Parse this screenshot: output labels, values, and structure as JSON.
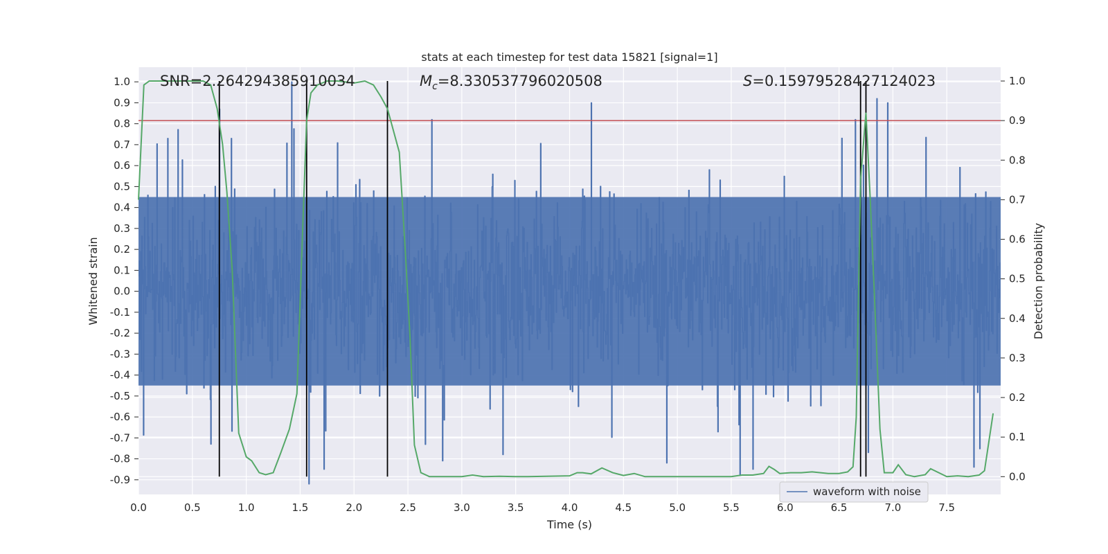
{
  "colors": {
    "background": "#EAEAF2",
    "grid": "#FFFFFF",
    "waveform": "#4C72B0",
    "probability": "#55A868",
    "threshold": "#C44E52",
    "event_lines": "#000000"
  },
  "chart_data": {
    "type": "line",
    "title": "stats at each timestep for test data 15821 [signal=1]",
    "xlabel": "Time (s)",
    "ylabel_left": "Whitened strain",
    "ylabel_right": "Detection probability",
    "xlim": [
      0.0,
      8.0
    ],
    "ylim_left": [
      -0.97,
      1.07
    ],
    "ylim_right": [
      -0.045,
      1.035
    ],
    "x_ticks": [
      0.0,
      0.5,
      1.0,
      1.5,
      2.0,
      2.5,
      3.0,
      3.5,
      4.0,
      4.5,
      5.0,
      5.5,
      6.0,
      6.5,
      7.0,
      7.5
    ],
    "x_tick_labels": [
      "0.0",
      "0.5",
      "1.0",
      "1.5",
      "2.0",
      "2.5",
      "3.0",
      "3.5",
      "4.0",
      "4.5",
      "5.0",
      "5.5",
      "6.0",
      "6.5",
      "7.0",
      "7.5"
    ],
    "y_left_ticks": [
      1.0,
      0.9,
      0.8,
      0.7,
      0.6,
      0.5,
      0.4,
      0.3,
      0.2,
      0.1,
      0.0,
      -0.1,
      -0.2,
      -0.3,
      -0.4,
      -0.5,
      -0.6,
      -0.7,
      -0.8,
      -0.9
    ],
    "y_left_tick_labels": [
      "1.0",
      "0.9",
      "0.8",
      "0.7",
      "0.6",
      "0.5",
      "0.4",
      "0.3",
      "0.2",
      "0.1",
      "0.0",
      "-0.1",
      "-0.2",
      "-0.3",
      "-0.4",
      "-0.5",
      "-0.6",
      "-0.7",
      "-0.8",
      "-0.9"
    ],
    "y_right_ticks": [
      1.0,
      0.9,
      0.8,
      0.7,
      0.6,
      0.5,
      0.4,
      0.3,
      0.2,
      0.1,
      0.0
    ],
    "y_right_tick_labels": [
      "1.0",
      "0.9",
      "0.8",
      "0.7",
      "0.6",
      "0.5",
      "0.4",
      "0.3",
      "0.2",
      "0.1",
      "0.0"
    ],
    "annotations": {
      "snr": "SNR=2.264294385910034",
      "mc_symbol": "M",
      "mc_subscript": "c",
      "mc_value": "=8.330537796020508",
      "s_symbol": "S",
      "s_value": "=0.15979528427124023"
    },
    "legend": {
      "label": "waveform with noise",
      "placement": "lower-right"
    },
    "threshold_probability": 0.9,
    "event_lines_x": [
      0.75,
      1.56,
      2.31,
      6.7,
      6.75
    ],
    "event_line_range_prob": [
      0.0,
      1.0
    ],
    "waveform": {
      "name": "waveform with noise",
      "sample_count": 1600,
      "duration_s": 8.0,
      "envelope_core": 0.45,
      "peaks": [
        {
          "x": 0.75,
          "y": 0.87
        },
        {
          "x": 0.86,
          "y": 0.73
        },
        {
          "x": 1.42,
          "y": 1.0
        },
        {
          "x": 1.58,
          "y": -0.92
        },
        {
          "x": 1.72,
          "y": -0.85
        },
        {
          "x": 2.72,
          "y": 0.82
        },
        {
          "x": 2.82,
          "y": -0.81
        },
        {
          "x": 3.38,
          "y": -0.78
        },
        {
          "x": 4.2,
          "y": 0.9
        },
        {
          "x": 5.58,
          "y": -0.88
        },
        {
          "x": 5.7,
          "y": -0.85
        },
        {
          "x": 6.85,
          "y": 0.92
        },
        {
          "x": 6.95,
          "y": 0.9
        },
        {
          "x": 7.75,
          "y": -0.84
        },
        {
          "x": 0.27,
          "y": 0.73
        },
        {
          "x": 0.67,
          "y": -0.73
        },
        {
          "x": 4.9,
          "y": -0.82
        },
        {
          "x": 6.65,
          "y": 0.82
        }
      ]
    },
    "series": [
      {
        "name": "detection probability",
        "axis": "right",
        "x": [
          0.0,
          0.05,
          0.1,
          0.2,
          0.3,
          0.4,
          0.5,
          0.6,
          0.67,
          0.73,
          0.78,
          0.82,
          0.87,
          0.93,
          1.0,
          1.05,
          1.12,
          1.18,
          1.25,
          1.32,
          1.4,
          1.47,
          1.52,
          1.56,
          1.6,
          1.66,
          1.75,
          1.85,
          2.0,
          2.1,
          2.18,
          2.25,
          2.31,
          2.36,
          2.42,
          2.48,
          2.52,
          2.56,
          2.62,
          2.7,
          3.0,
          3.1,
          3.2,
          3.35,
          3.5,
          3.6,
          4.0,
          4.07,
          4.12,
          4.2,
          4.3,
          4.4,
          4.5,
          4.6,
          4.7,
          5.0,
          5.5,
          5.6,
          5.7,
          5.8,
          5.85,
          5.9,
          5.95,
          6.05,
          6.15,
          6.25,
          6.4,
          6.5,
          6.58,
          6.63,
          6.66,
          6.7,
          6.75,
          6.79,
          6.83,
          6.88,
          6.92,
          7.0,
          7.05,
          7.12,
          7.2,
          7.3,
          7.35,
          7.5,
          7.6,
          7.7,
          7.8,
          7.85,
          7.93
        ],
        "y": [
          0.7,
          0.99,
          1.0,
          1.0,
          1.0,
          1.0,
          1.0,
          1.0,
          0.99,
          0.93,
          0.84,
          0.72,
          0.52,
          0.11,
          0.05,
          0.04,
          0.01,
          0.005,
          0.01,
          0.06,
          0.12,
          0.21,
          0.6,
          0.9,
          0.97,
          0.99,
          1.0,
          1.0,
          0.995,
          1.0,
          0.99,
          0.96,
          0.93,
          0.88,
          0.82,
          0.55,
          0.35,
          0.08,
          0.01,
          0.0,
          0.0,
          0.004,
          0.0,
          0.001,
          0.0,
          0.0,
          0.002,
          0.01,
          0.01,
          0.007,
          0.022,
          0.01,
          0.003,
          0.008,
          0.0,
          0.0,
          0.0,
          0.004,
          0.004,
          0.008,
          0.026,
          0.018,
          0.008,
          0.01,
          0.01,
          0.012,
          0.008,
          0.008,
          0.012,
          0.025,
          0.15,
          0.75,
          0.92,
          0.7,
          0.45,
          0.12,
          0.01,
          0.01,
          0.03,
          0.005,
          0.0,
          0.005,
          0.02,
          0.0,
          0.002,
          0.0,
          0.004,
          0.015,
          0.16
        ]
      }
    ]
  }
}
